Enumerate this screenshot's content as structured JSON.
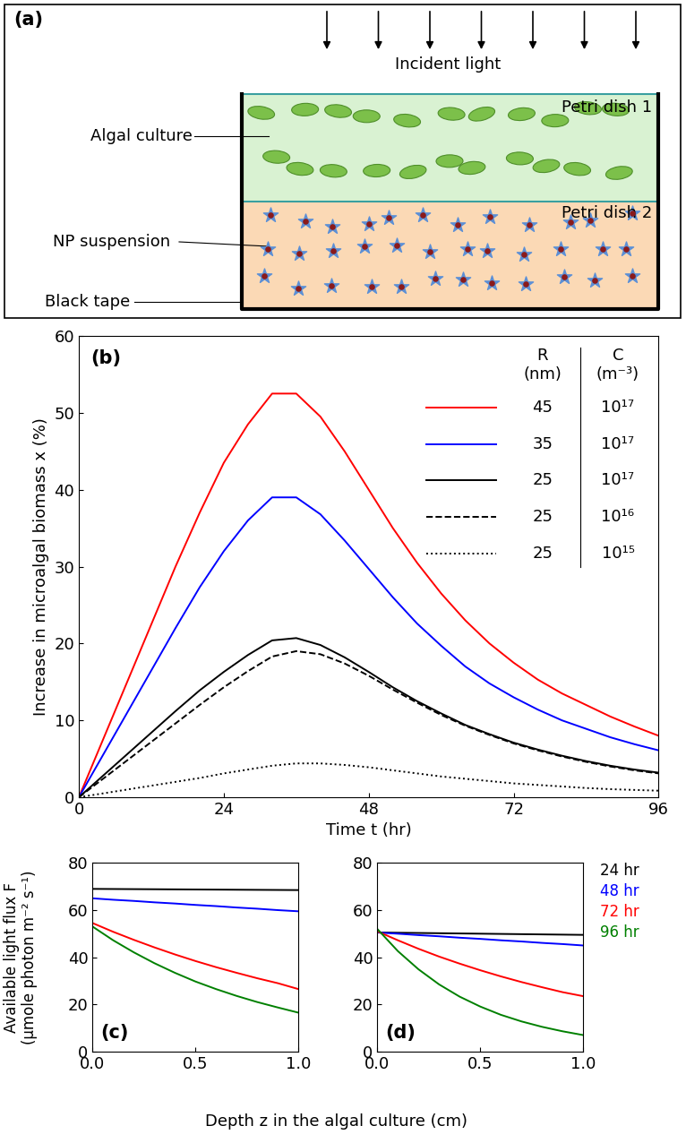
{
  "diagram": {
    "label": "(a)",
    "incident_light": "Incident light",
    "algal_culture": "Algal culture",
    "np_suspension": "NP suspension",
    "black_tape": "Black tape",
    "petri_dish_1": "Petri dish 1",
    "petri_dish_2": "Petri dish 2"
  },
  "shared": {
    "xlabel": "Depth z in the algal culture (cm)",
    "ylabel": "Available light flux F\n(μmole photon m⁻² s⁻¹)"
  },
  "chart_data": [
    {
      "type": "line",
      "panel": "(b)",
      "xlabel": "Time t (hr)",
      "ylabel": "Increase in microalgal biomass x (%)",
      "xlim": [
        0,
        96
      ],
      "ylim": [
        0,
        60
      ],
      "xticks": [
        0,
        24,
        48,
        72,
        96
      ],
      "yticks": [
        0,
        10,
        20,
        30,
        40,
        50,
        60
      ],
      "legend_headers": [
        "R\n(nm)",
        "C\n(m⁻³)"
      ],
      "x": [
        0,
        4,
        8,
        12,
        16,
        20,
        24,
        28,
        32,
        36,
        40,
        44,
        48,
        52,
        56,
        60,
        64,
        68,
        72,
        76,
        80,
        84,
        88,
        92,
        96
      ],
      "series": [
        {
          "R": 45,
          "C": {
            "value": 1e+17,
            "label": "10¹⁷"
          },
          "color": "#ff0000",
          "line_style": "solid",
          "values": [
            0,
            7.5,
            15,
            22.5,
            30,
            37,
            43.5,
            48.5,
            52.5,
            52.5,
            49.5,
            45,
            40,
            35,
            30.5,
            26.5,
            23,
            20,
            17.5,
            15.3,
            13.5,
            12,
            10.5,
            9.2,
            8.0
          ]
        },
        {
          "R": 35,
          "C": {
            "value": 1e+17,
            "label": "10¹⁷"
          },
          "color": "#0000ff",
          "line_style": "solid",
          "values": [
            0,
            5.5,
            11,
            16.5,
            22,
            27.3,
            32,
            36,
            39,
            39,
            36.8,
            33.4,
            29.7,
            26,
            22.6,
            19.7,
            17,
            14.8,
            13,
            11.4,
            10,
            8.9,
            7.8,
            6.9,
            6.1
          ]
        },
        {
          "R": 25,
          "C": {
            "value": 1e+17,
            "label": "10¹⁷"
          },
          "color": "#000000",
          "line_style": "solid",
          "values": [
            0,
            2.8,
            5.6,
            8.4,
            11.2,
            13.9,
            16.3,
            18.5,
            20.4,
            20.7,
            19.8,
            18.2,
            16.3,
            14.3,
            12.5,
            10.9,
            9.4,
            8.2,
            7.1,
            6.2,
            5.4,
            4.7,
            4.1,
            3.6,
            3.2
          ]
        },
        {
          "R": 25,
          "C": {
            "value": 1e+16,
            "label": "10¹⁶"
          },
          "color": "#000000",
          "line_style": "dashed",
          "values": [
            0,
            2.4,
            4.8,
            7.2,
            9.6,
            12,
            14.3,
            16.4,
            18.3,
            19,
            18.6,
            17.4,
            15.8,
            14,
            12.3,
            10.7,
            9.3,
            8.1,
            7,
            6.1,
            5.3,
            4.6,
            4,
            3.5,
            3.1
          ]
        },
        {
          "R": 25,
          "C": {
            "value": 1000000000000000.0,
            "label": "10¹⁵"
          },
          "color": "#000000",
          "line_style": "dotted",
          "values": [
            0,
            0.5,
            1,
            1.5,
            2,
            2.5,
            3.1,
            3.6,
            4.1,
            4.4,
            4.4,
            4.2,
            3.9,
            3.5,
            3.1,
            2.7,
            2.4,
            2.1,
            1.8,
            1.6,
            1.4,
            1.2,
            1.05,
            0.95,
            0.85
          ]
        }
      ]
    },
    {
      "type": "line",
      "panel": "(c)",
      "xlim": [
        0,
        1
      ],
      "ylim": [
        0,
        80
      ],
      "xticks": [
        {
          "value": 0,
          "label": "0.0"
        },
        {
          "value": 0.5,
          "label": "0.5"
        },
        {
          "value": 1,
          "label": "1.0"
        }
      ],
      "yticks": [
        0,
        20,
        40,
        60,
        80
      ],
      "x": [
        0,
        0.1,
        0.2,
        0.3,
        0.4,
        0.5,
        0.6,
        0.7,
        0.8,
        0.9,
        1.0
      ],
      "series": [
        {
          "name": "24 hr",
          "color": "#000000",
          "values": [
            69,
            68.95,
            68.9,
            68.85,
            68.8,
            68.75,
            68.7,
            68.65,
            68.6,
            68.55,
            68.5
          ]
        },
        {
          "name": "48 hr",
          "color": "#0000ff",
          "values": [
            65,
            64.4,
            63.9,
            63.3,
            62.8,
            62.2,
            61.7,
            61.1,
            60.6,
            60.0,
            59.5
          ]
        },
        {
          "name": "72 hr",
          "color": "#ff0000",
          "values": [
            54.5,
            50.8,
            47.4,
            44.2,
            41.2,
            38.4,
            35.8,
            33.4,
            31.1,
            29.0,
            26.5
          ]
        },
        {
          "name": "96 hr",
          "color": "#008000",
          "values": [
            53,
            47.2,
            42.1,
            37.5,
            33.4,
            29.7,
            26.5,
            23.6,
            21.0,
            18.7,
            16.5
          ]
        }
      ]
    },
    {
      "type": "line",
      "panel": "(d)",
      "xlim": [
        0,
        1
      ],
      "ylim": [
        0,
        80
      ],
      "xticks": [
        {
          "value": 0,
          "label": "0.0"
        },
        {
          "value": 0.5,
          "label": "0.5"
        },
        {
          "value": 1,
          "label": "1.0"
        }
      ],
      "yticks": [
        0,
        20,
        40,
        60,
        80
      ],
      "x": [
        0,
        0.1,
        0.2,
        0.3,
        0.4,
        0.5,
        0.6,
        0.7,
        0.8,
        0.9,
        1.0
      ],
      "series": [
        {
          "name": "24 hr",
          "color": "#000000",
          "values": [
            50.5,
            50.4,
            50.3,
            50.2,
            50.1,
            50.0,
            49.9,
            49.8,
            49.7,
            49.6,
            49.5
          ]
        },
        {
          "name": "48 hr",
          "color": "#0000ff",
          "values": [
            50.5,
            50.0,
            49.4,
            48.9,
            48.3,
            47.8,
            47.2,
            46.7,
            46.1,
            45.6,
            45.0
          ]
        },
        {
          "name": "72 hr",
          "color": "#ff0000",
          "values": [
            51,
            47.2,
            43.6,
            40.3,
            37.3,
            34.5,
            31.9,
            29.5,
            27.3,
            25.2,
            23.5
          ]
        },
        {
          "name": "96 hr",
          "color": "#008000",
          "values": [
            52,
            42.6,
            34.9,
            28.5,
            23.3,
            19.1,
            15.6,
            12.8,
            10.5,
            8.6,
            7.0
          ]
        }
      ]
    }
  ]
}
